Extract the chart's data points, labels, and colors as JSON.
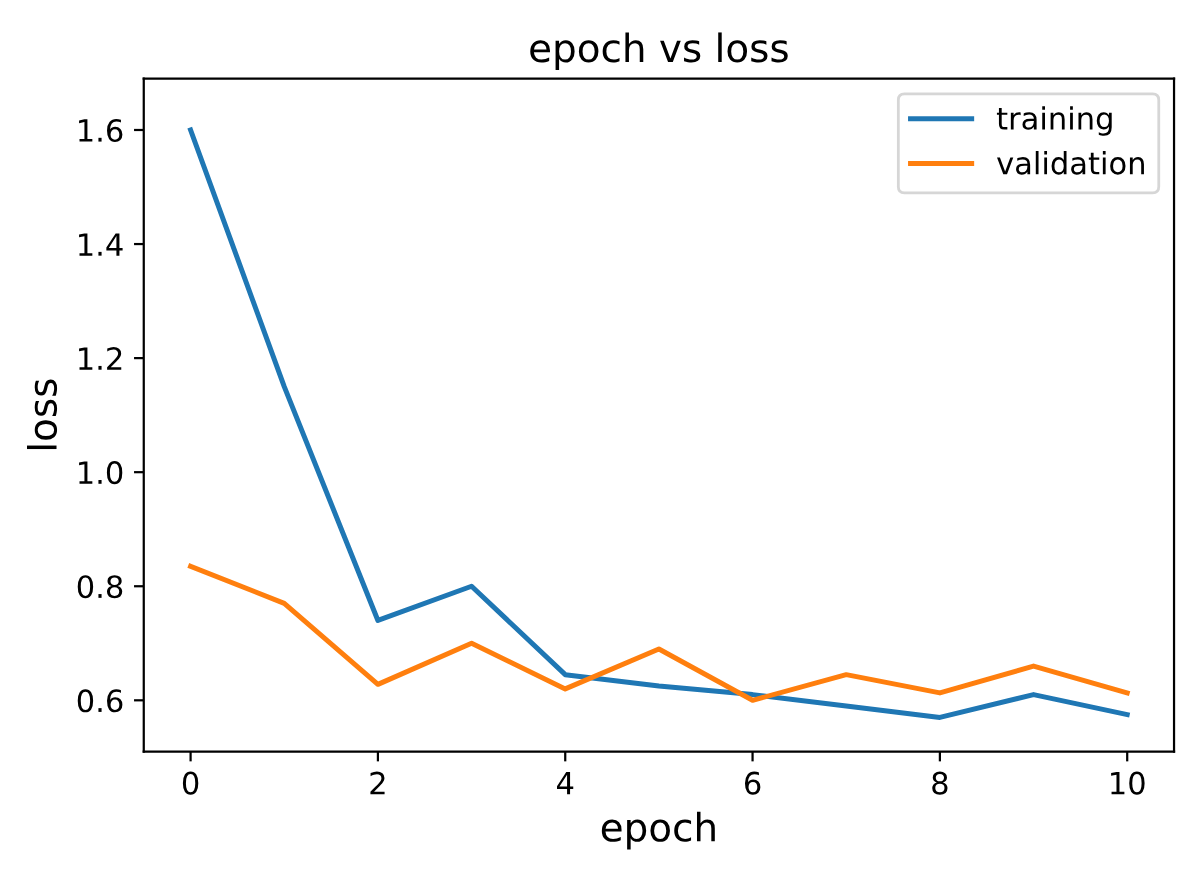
{
  "chart_data": {
    "type": "line",
    "title": "epoch vs loss",
    "xlabel": "epoch",
    "ylabel": "loss",
    "x": [
      0,
      1,
      2,
      3,
      4,
      5,
      6,
      7,
      8,
      9,
      10
    ],
    "series": [
      {
        "name": "training",
        "color": "#1f77b4",
        "values": [
          1.6,
          1.15,
          0.74,
          0.8,
          0.645,
          0.625,
          0.61,
          0.59,
          0.57,
          0.61,
          0.575
        ]
      },
      {
        "name": "validation",
        "color": "#ff7f0e",
        "values": [
          0.835,
          0.77,
          0.628,
          0.7,
          0.62,
          0.69,
          0.6,
          0.645,
          0.613,
          0.66,
          0.613
        ]
      }
    ],
    "xlim": [
      -0.5,
      10.5
    ],
    "ylim": [
      0.51,
      1.69
    ],
    "xticks": [
      0,
      2,
      4,
      6,
      8,
      10
    ],
    "yticks": [
      0.6,
      0.8,
      {
        "value": 1,
        "label": "1.0"
      },
      1.2,
      1.4,
      1.6
    ],
    "legend": "top right",
    "grid": false
  }
}
